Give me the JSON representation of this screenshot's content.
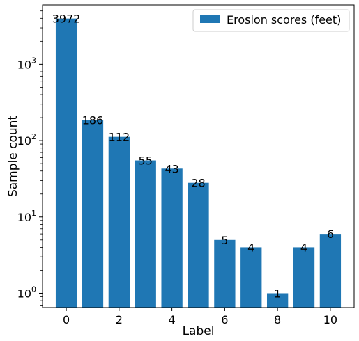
{
  "chart_data": {
    "type": "bar",
    "x": [
      0,
      1,
      2,
      3,
      4,
      5,
      6,
      7,
      8,
      9,
      10
    ],
    "values": [
      3972,
      186,
      112,
      55,
      43,
      28,
      5,
      4,
      1,
      4,
      6
    ],
    "data_labels": [
      "3972",
      "186",
      "112",
      "55",
      "43",
      "28",
      "5",
      "4",
      "1",
      "4",
      "6"
    ],
    "series": [
      {
        "name": "Erosion scores (feet)",
        "color": "#1f77b4"
      }
    ],
    "xlabel": "Label",
    "ylabel": "Sample count",
    "x_ticks": [
      0,
      2,
      4,
      6,
      8,
      10
    ],
    "x_tick_labels": [
      "0",
      "2",
      "4",
      "6",
      "8",
      "10"
    ],
    "y_scale": "log",
    "y_ticks": [
      1,
      10,
      100,
      1000
    ],
    "y_tick_labels": [
      {
        "base": "10",
        "exp": "0"
      },
      {
        "base": "10",
        "exp": "1"
      },
      {
        "base": "10",
        "exp": "2"
      },
      {
        "base": "10",
        "exp": "3"
      }
    ],
    "ylim": [
      0.65,
      6000
    ],
    "xlim": [
      -0.9,
      10.9
    ],
    "legend_position": "top-right",
    "grid": false
  }
}
